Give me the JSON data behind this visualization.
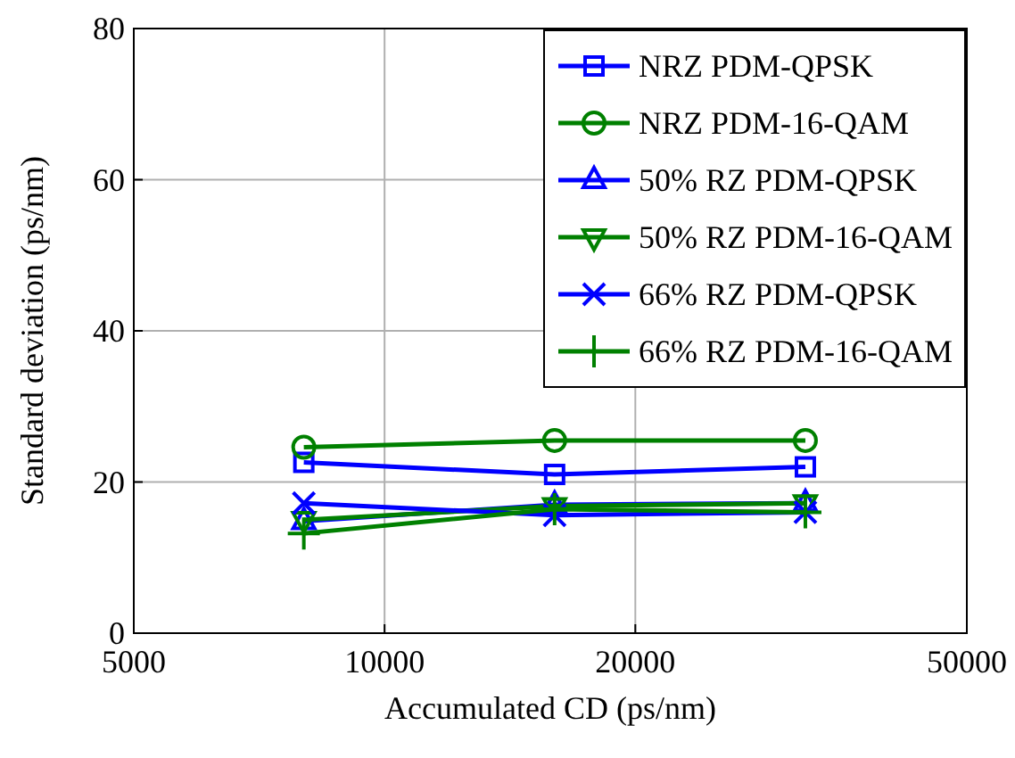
{
  "chart_data": {
    "type": "line",
    "xlabel": "Accumulated CD (ps/nm)",
    "ylabel": "Standard deviation (ps/nm)",
    "log": "x",
    "xlim": [
      5000,
      50000
    ],
    "xticks": [
      5000,
      10000,
      20000,
      50000
    ],
    "ylim": [
      0,
      80
    ],
    "yticks": [
      0,
      20,
      40,
      60,
      80
    ],
    "grid": true,
    "legend": "top right",
    "x": [
      8000,
      16000,
      32000
    ],
    "series": [
      {
        "name": "NRZ PDM-QPSK",
        "color": "#0000ff",
        "marker": "square",
        "values": [
          22.6,
          21.0,
          22.0
        ]
      },
      {
        "name": "NRZ PDM-16-QAM",
        "color": "#008000",
        "marker": "circle",
        "values": [
          24.6,
          25.5,
          25.5
        ]
      },
      {
        "name": "50% RZ PDM-QPSK",
        "color": "#0000ff",
        "marker": "triangle",
        "values": [
          14.8,
          17.0,
          17.2
        ]
      },
      {
        "name": "50% RZ PDM-16-QAM",
        "color": "#008000",
        "marker": "triangle-down",
        "values": [
          15.0,
          16.8,
          17.2
        ]
      },
      {
        "name": "66% RZ PDM-QPSK",
        "color": "#0000ff",
        "marker": "cross",
        "values": [
          17.2,
          15.6,
          16.0
        ]
      },
      {
        "name": "66% RZ PDM-16-QAM",
        "color": "#008000",
        "marker": "plus",
        "values": [
          13.2,
          16.4,
          16.0
        ]
      }
    ]
  }
}
